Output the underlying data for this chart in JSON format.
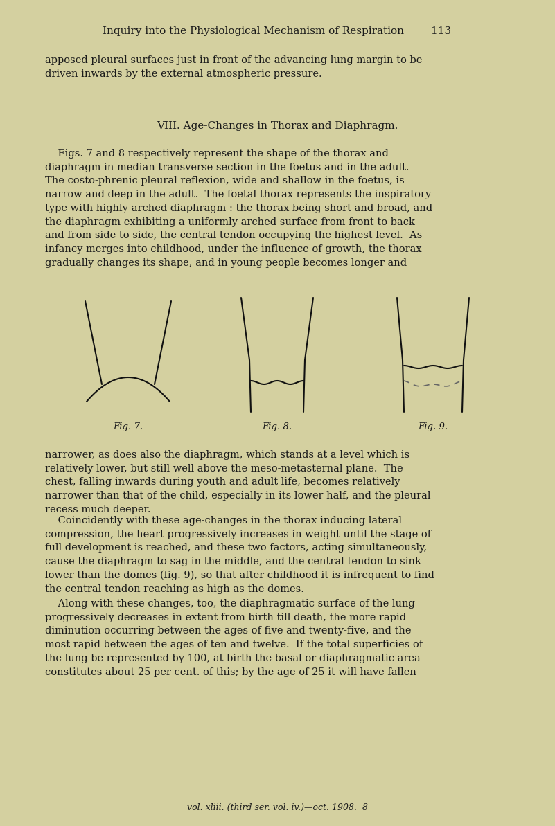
{
  "bg_color": "#d4d0a0",
  "text_color": "#1a1a1a",
  "page_width": 8.01,
  "page_height": 11.93,
  "header_text": "Inquiry into the Physiological Mechanism of Respiration        113",
  "para1": "apposed pleural surfaces just in front of the advancing lung margin to be\ndriven inwards by the external atmospheric pressure.",
  "section_title": "VIII. Age-Changes in Thorax and Diaphragm.",
  "body_text1_indent": "    Figs. 7 and 8 respectively represent the shape of the thorax and\ndiaphragm in median transverse section in the foetus and in the adult.\nThe costo-phrenic pleural reflexion, wide and shallow in the foetus, is\nnarrow and deep in the adult.  The foetal thorax represents the inspiratory\ntype with highly-arched diaphragm : the thorax being short and broad, and\nthe diaphragm exhibiting a uniformly arched surface from front to back\nand from side to side, the central tendon occupying the highest level.  As\ninfancy merges into childhood, under the influence of growth, the thorax\ngradually changes its shape, and in young people becomes longer and",
  "body_text2": "narrower, as does also the diaphragm, which stands at a level which is\nrelatively lower, but still well above the meso-metasternal plane.  The\nchest, falling inwards during youth and adult life, becomes relatively\nnarrower than that of the child, especially in its lower half, and the pleural\nrecess much deeper.",
  "body_text3": "    Coincidently with these age-changes in the thorax inducing lateral\ncompression, the heart progressively increases in weight until the stage of\nfull development is reached, and these two factors, acting simultaneously,\ncause the diaphragm to sag in the middle, and the central tendon to sink\nlower than the domes (fig. 9), so that after childhood it is infrequent to find\nthe central tendon reaching as high as the domes.",
  "body_text4": "    Along with these changes, too, the diaphragmatic surface of the lung\nprogressively decreases in extent from birth till death, the more rapid\ndiminution occurring between the ages of five and twenty-five, and the\nmost rapid between the ages of ten and twelve.  If the total superficies of\nthe lung be represented by 100, at birth the basal or diaphragmatic area\nconstitutes about 25 per cent. of this; by the age of 25 it will have fallen",
  "footer_text": "vol. xliii. (third ser. vol. iv.)—oct. 1908.  8",
  "fig7_label": "Fig. 7.",
  "fig8_label": "Fig. 8.",
  "fig9_label": "Fig. 9.",
  "line_color": "#111111",
  "dash_color": "#666666"
}
